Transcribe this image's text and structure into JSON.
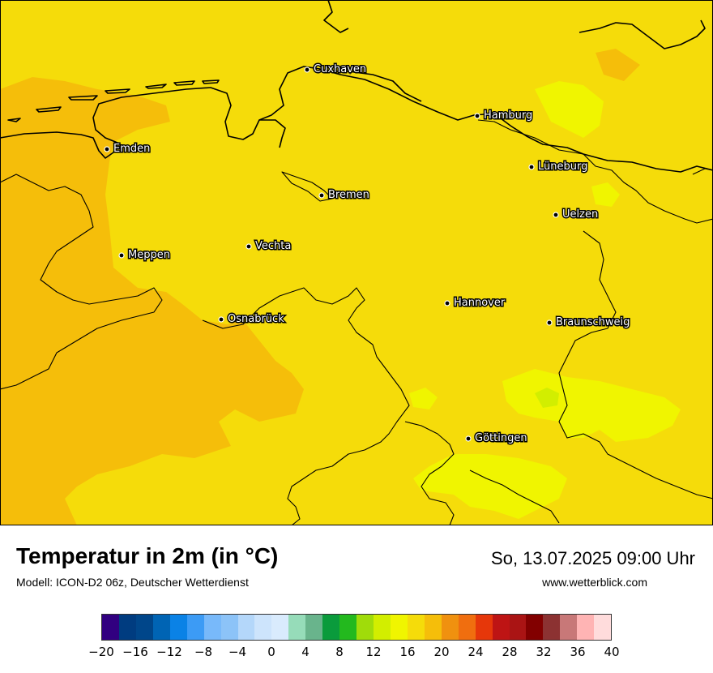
{
  "header": {
    "title": "Temperatur in 2m (in °C)",
    "model": "Modell: ICON-D2 06z, Deutscher Wetterdienst",
    "datetime": "So, 13.07.2025 09:00 Uhr",
    "website": "www.wetterblick.com"
  },
  "cities": [
    {
      "name": "Cuxhaven"
    },
    {
      "name": "Hamburg"
    },
    {
      "name": "Emden"
    },
    {
      "name": "Lüneburg"
    },
    {
      "name": "Bremen"
    },
    {
      "name": "Uelzen"
    },
    {
      "name": "Vechta"
    },
    {
      "name": "Meppen"
    },
    {
      "name": "Hannover"
    },
    {
      "name": "Osnabrück"
    },
    {
      "name": "Braunschweig"
    },
    {
      "name": "Göttingen"
    }
  ],
  "legend": {
    "unit": "°C",
    "ticks": [
      "−20",
      "−16",
      "−12",
      "−8",
      "−4",
      "0",
      "4",
      "8",
      "12",
      "16",
      "20",
      "24",
      "28",
      "32",
      "36",
      "40"
    ],
    "colors": [
      "#310080",
      "#003c80",
      "#00468a",
      "#0064b4",
      "#0a82e6",
      "#3c9bf5",
      "#78b9fa",
      "#8cc3f8",
      "#b4d7fa",
      "#cde4fc",
      "#d9ebfd",
      "#96dcb9",
      "#69b48c",
      "#0a9b3c",
      "#23b91e",
      "#a0dc0a",
      "#d2ee00",
      "#f0f500",
      "#f5dc0a",
      "#f5be0a",
      "#f0910f",
      "#f06e0f",
      "#e6370a",
      "#be1414",
      "#aa1414",
      "#820000",
      "#8c3232",
      "#c87878",
      "#ffb4b4",
      "#ffdcdc"
    ],
    "map_colors": {
      "yellow_16_18": "#f5dc0a",
      "orange_18_20": "#f5be0a",
      "lightgreen_14_16": "#f0f500",
      "green_12_14": "#d2ee00"
    }
  }
}
